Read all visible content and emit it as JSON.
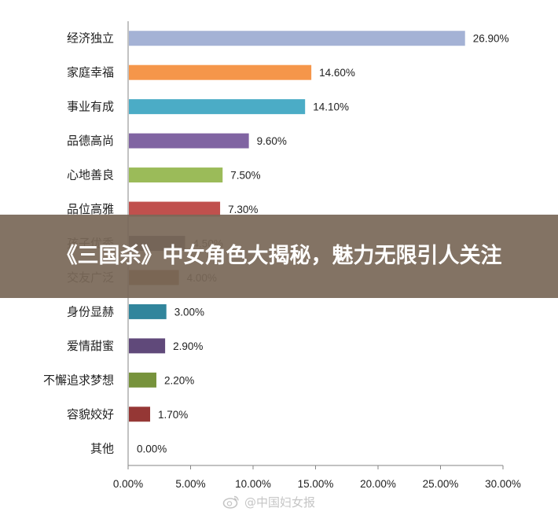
{
  "chart_data": {
    "type": "bar",
    "orientation": "horizontal",
    "categories": [
      "经济独立",
      "家庭幸福",
      "事业有成",
      "品德高尚",
      "心地善良",
      "品位高雅",
      "孩子优秀",
      "交友广泛",
      "身份显赫",
      "爱情甜蜜",
      "不懈追求梦想",
      "容貌姣好",
      "其他"
    ],
    "values": [
      26.9,
      14.6,
      14.1,
      9.6,
      7.5,
      7.3,
      4.5,
      4.0,
      3.0,
      2.9,
      2.2,
      1.7,
      0.0
    ],
    "value_labels": [
      "26.90%",
      "14.60%",
      "14.10%",
      "9.60%",
      "7.50%",
      "7.30%",
      "4.50%",
      "4.00%",
      "3.00%",
      "2.90%",
      "2.20%",
      "1.70%",
      "0.00%"
    ],
    "colors": [
      "#a4b2d5",
      "#f5964a",
      "#4bacc6",
      "#8064a2",
      "#9bbb59",
      "#c0504d",
      "#3b3b59",
      "#7b4a1e",
      "#31859c",
      "#60497a",
      "#77933c",
      "#953735",
      "#4f81bd"
    ],
    "x_ticks": [
      "0.00%",
      "5.00%",
      "10.00%",
      "15.00%",
      "20.00%",
      "25.00%",
      "30.00%"
    ],
    "xlim": [
      0,
      30
    ],
    "grid": false,
    "legend": "none"
  },
  "overlay": {
    "title": "《三国杀》中女角色大揭秘，魅力无限引人关注"
  },
  "watermark": {
    "text": "@中国妇女报",
    "icon": "weibo-icon"
  }
}
